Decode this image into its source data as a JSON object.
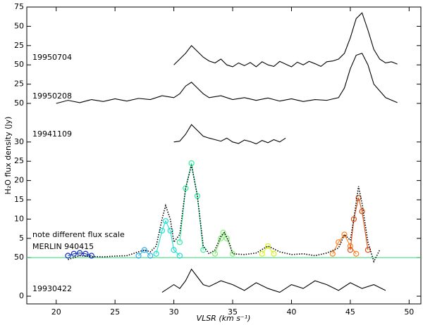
{
  "chart_data": {
    "type": "line",
    "ylabel": "H₂O flux density (Jy)",
    "xlabel": "VLSR (km s⁻¹)",
    "xlim": [
      17.5,
      51
    ],
    "ylim": [
      -2,
      75
    ],
    "xticks": [
      20,
      25,
      30,
      35,
      40,
      45,
      50
    ],
    "yticks": [
      0,
      {
        "value": 10,
        "label": "50"
      },
      {
        "value": 15,
        "label": "5"
      },
      {
        "value": 20,
        "label": "10"
      },
      {
        "value": 25,
        "label": "15"
      },
      {
        "value": 30,
        "label": "20"
      },
      {
        "value": 35,
        "label": "25"
      },
      {
        "value": 40,
        "label": "30"
      },
      {
        "value": 50,
        "label": "50"
      },
      {
        "value": 55,
        "label": "25"
      },
      {
        "value": 60,
        "label": "50"
      },
      {
        "value": 65,
        "label": "25"
      },
      {
        "value": 70,
        "label": "50"
      },
      75
    ],
    "annotations": [
      "19950704",
      "19950208",
      "19941109",
      "note different flux scale",
      "MERLIN 940415",
      "19930422"
    ],
    "series": [
      {
        "color": "#000000",
        "linestyle": "solid",
        "x": [
          30,
          30.5,
          31,
          31.5,
          32,
          32.5,
          33,
          33.5,
          34,
          34.5,
          35,
          35.5,
          36,
          36.5,
          37,
          37.5,
          38,
          38.5,
          39,
          39.5,
          40,
          40.5,
          41,
          41.5,
          42,
          42.5,
          43,
          43.5,
          44,
          44.5,
          45,
          45.5,
          46,
          46.5,
          47,
          47.5,
          48,
          48.5,
          49
        ],
        "values": [
          60,
          61.5,
          63,
          65,
          63.5,
          62,
          61,
          60.5,
          61.5,
          60,
          59.5,
          60.5,
          59.8,
          60.6,
          59.5,
          60.8,
          60,
          59.6,
          60.9,
          60.2,
          59.5,
          60.7,
          60,
          60.9,
          60.3,
          59.6,
          60.8,
          61,
          61.5,
          63,
          67,
          72,
          73.5,
          69,
          64,
          61.5,
          60.5,
          60.8,
          60.2
        ]
      },
      {
        "color": "#000000",
        "linestyle": "solid",
        "x": [
          20,
          21,
          22,
          23,
          24,
          25,
          26,
          27,
          28,
          29,
          30,
          30.5,
          31,
          31.5,
          32,
          32.5,
          33,
          34,
          35,
          36,
          37,
          38,
          39,
          40,
          41,
          42,
          43,
          44,
          44.5,
          45,
          45.5,
          46,
          46.5,
          47,
          48,
          49
        ],
        "values": [
          50,
          50.8,
          50.2,
          51,
          50.5,
          51.2,
          50.6,
          51.3,
          51,
          52,
          51.5,
          52.5,
          54.5,
          55.5,
          54,
          52.5,
          51.5,
          52,
          51,
          51.5,
          50.8,
          51.4,
          50.6,
          51.2,
          50.5,
          51,
          50.8,
          51.5,
          54,
          59,
          62.5,
          63,
          60,
          55,
          51.5,
          50.2
        ]
      },
      {
        "color": "#000000",
        "linestyle": "solid",
        "x": [
          30,
          30.5,
          31,
          31.5,
          32,
          32.5,
          33,
          33.5,
          34,
          34.5,
          35,
          35.5,
          36,
          36.5,
          37,
          37.5,
          38,
          38.5,
          39,
          39.5
        ],
        "values": [
          40,
          40.2,
          42,
          44.5,
          43,
          41.5,
          41,
          40.6,
          40.2,
          41,
          40,
          39.6,
          40.5,
          40.1,
          39.5,
          40.4,
          39.8,
          40.6,
          40,
          41
        ]
      },
      {
        "color": "#40e080",
        "linestyle": "solid",
        "x": [
          17.5,
          51
        ],
        "values": [
          10,
          10
        ]
      },
      {
        "color": "#1030c0",
        "linestyle": "solid",
        "marker": "o",
        "x": [
          21,
          21.5,
          22,
          22.5,
          23
        ],
        "values": [
          10.5,
          11,
          11.2,
          11,
          10.5
        ]
      },
      {
        "color": "#30b0f0",
        "linestyle": "solid",
        "marker": "o",
        "x": [
          27,
          27.5,
          28
        ],
        "values": [
          10.5,
          12,
          10.5
        ]
      },
      {
        "color": "#20e0d0",
        "linestyle": "solid",
        "marker": "o",
        "x": [
          28.5,
          29,
          29.3,
          29.7,
          30,
          30.5
        ],
        "values": [
          11,
          17,
          19.5,
          17,
          12,
          10.5
        ]
      },
      {
        "color": "#30f0a0",
        "linestyle": "solid",
        "marker": "o",
        "x": [
          30.5,
          31,
          31.5,
          32,
          32.5
        ],
        "values": [
          14,
          28,
          34.5,
          26,
          12
        ]
      },
      {
        "color": "#80f070",
        "linestyle": "solid",
        "marker": "o",
        "x": [
          33.5,
          34,
          34.2,
          34.5,
          35
        ],
        "values": [
          11,
          15,
          16.5,
          15,
          11
        ]
      },
      {
        "color": "#d8f020",
        "linestyle": "solid",
        "marker": "o",
        "x": [
          37.5,
          38,
          38.5
        ],
        "values": [
          11,
          13,
          11
        ]
      },
      {
        "color": "#ff8020",
        "linestyle": "solid",
        "marker": "o",
        "x": [
          43.5,
          44,
          44.5,
          45,
          45.5
        ],
        "values": [
          11,
          14,
          16,
          13,
          11
        ]
      },
      {
        "color": "#e05010",
        "linestyle": "solid",
        "marker": "o",
        "x": [
          45,
          45.3,
          45.7,
          46,
          46.5
        ],
        "values": [
          12,
          20,
          25.5,
          22,
          12
        ]
      },
      {
        "color": "#000000",
        "linestyle": "dotted",
        "x": [
          21,
          22,
          23,
          24,
          25,
          26,
          27,
          27.5,
          28,
          28.5,
          29,
          29.3,
          29.7,
          30,
          30.5,
          31,
          31.5,
          32,
          32.5,
          33,
          33.5,
          34,
          34.3,
          34.7,
          35,
          36,
          37,
          38,
          39,
          40,
          41,
          42,
          43,
          44,
          44.5,
          45,
          45.3,
          45.7,
          46,
          46.5,
          47,
          47.5
        ],
        "values": [
          9.5,
          10.5,
          10.3,
          10.2,
          10.4,
          10.5,
          11.5,
          12,
          11.5,
          13,
          20,
          23.5,
          20,
          14,
          16,
          28,
          34,
          26,
          13,
          11,
          12,
          15.5,
          16.5,
          14,
          11,
          10.8,
          11.2,
          13,
          11.5,
          10.8,
          11,
          10.5,
          11.2,
          12.5,
          16,
          14.5,
          20,
          28.5,
          24,
          14,
          9,
          12
        ]
      },
      {
        "color": "#000000",
        "linestyle": "solid",
        "x": [
          29,
          30,
          30.5,
          31,
          31.5,
          32,
          32.5,
          33,
          34,
          35,
          36,
          37,
          38,
          39,
          40,
          41,
          42,
          43,
          44,
          45,
          46,
          47,
          48
        ],
        "values": [
          1,
          3,
          2,
          4,
          7,
          5,
          3,
          2.5,
          4,
          3,
          1.5,
          3.5,
          2,
          1,
          3,
          2,
          4,
          3,
          1.5,
          3.5,
          2,
          3,
          1.5
        ]
      }
    ]
  }
}
